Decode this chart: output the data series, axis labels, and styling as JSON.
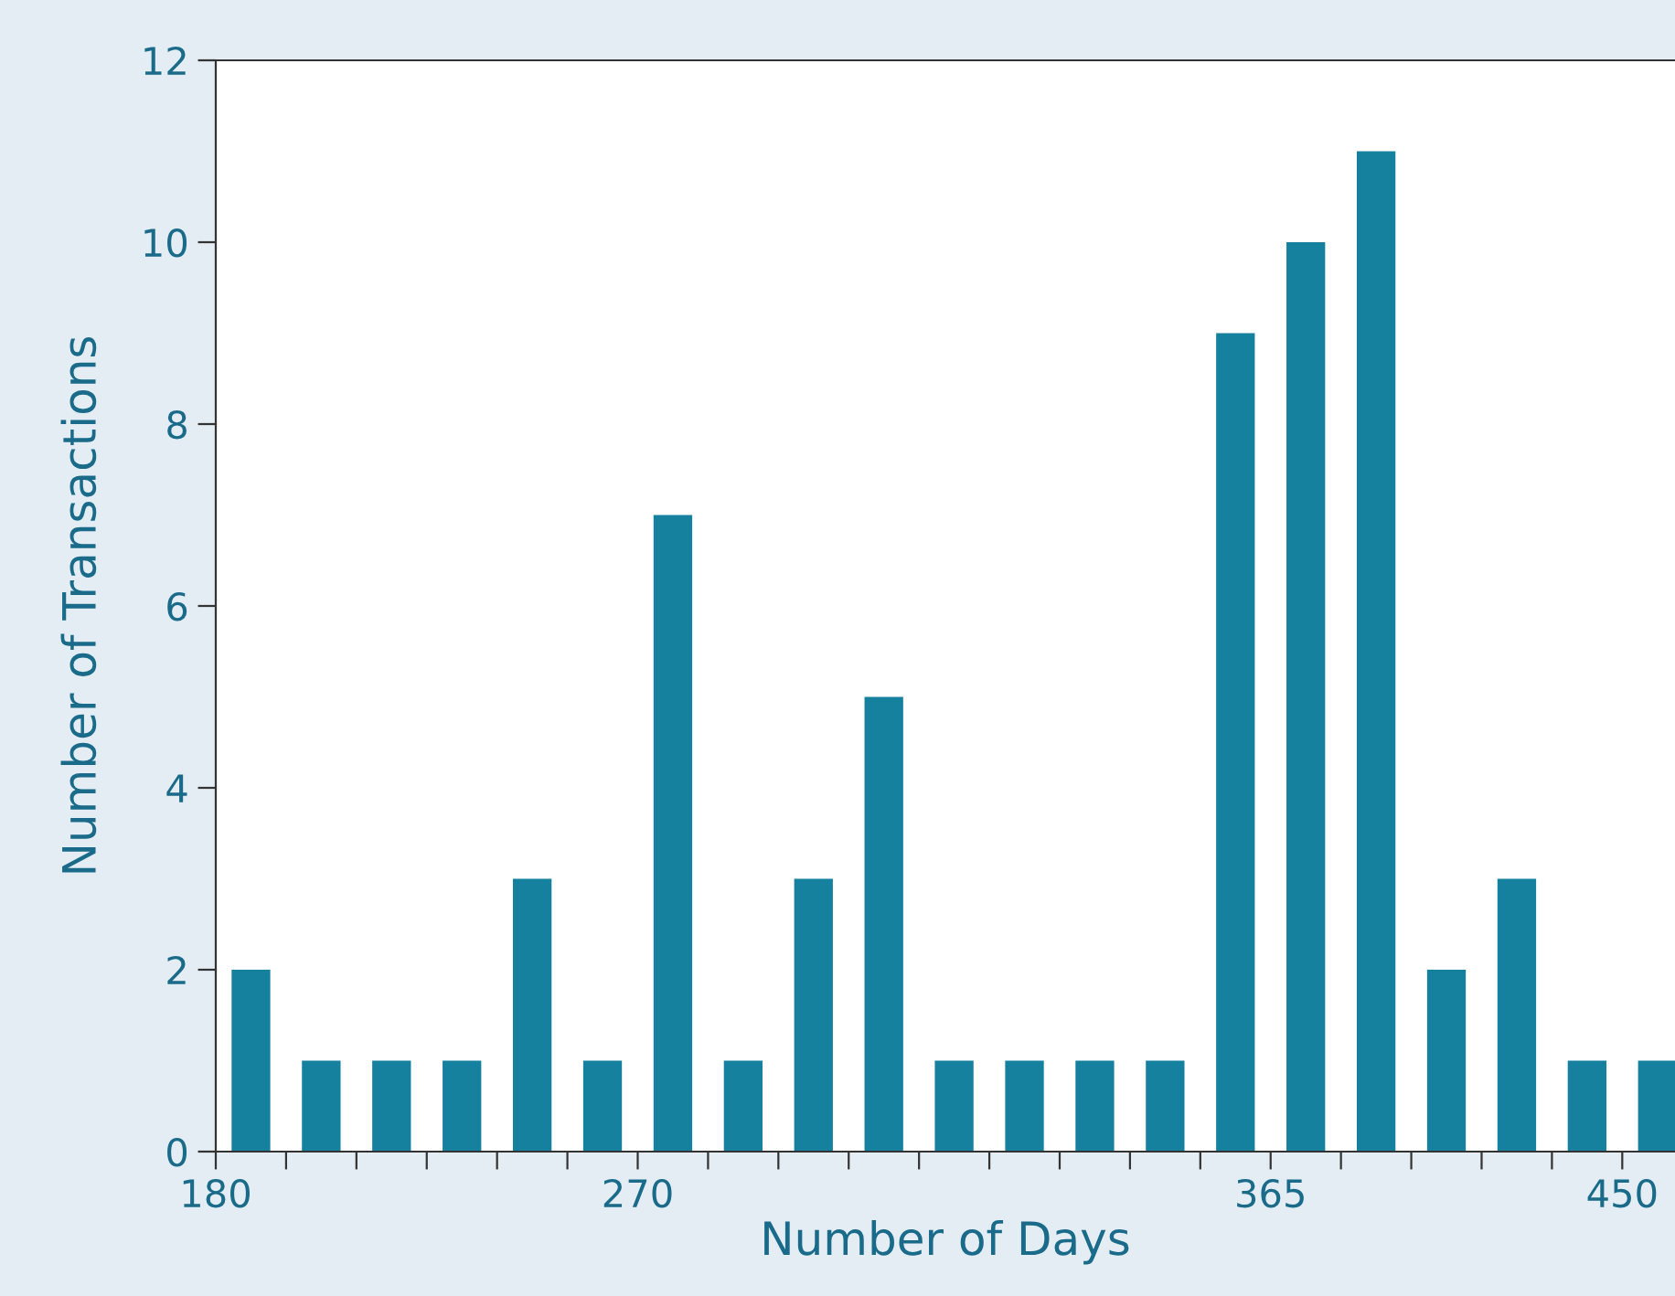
{
  "chart_data": {
    "type": "bar",
    "xlabel": "Number of Days",
    "ylabel": "Number of Transactions",
    "categories": [
      "180",
      null,
      null,
      null,
      null,
      null,
      "270",
      null,
      null,
      null,
      null,
      null,
      null,
      null,
      null,
      "365",
      null,
      null,
      null,
      null,
      "450"
    ],
    "values": [
      2,
      1,
      1,
      1,
      3,
      1,
      7,
      1,
      3,
      5,
      1,
      1,
      1,
      1,
      9,
      10,
      11,
      2,
      3,
      1,
      1
    ],
    "color": "#16819f",
    "ylim": [
      0,
      12
    ],
    "yticks": [
      0,
      2,
      4,
      6,
      8,
      10,
      12
    ],
    "grid": false
  }
}
